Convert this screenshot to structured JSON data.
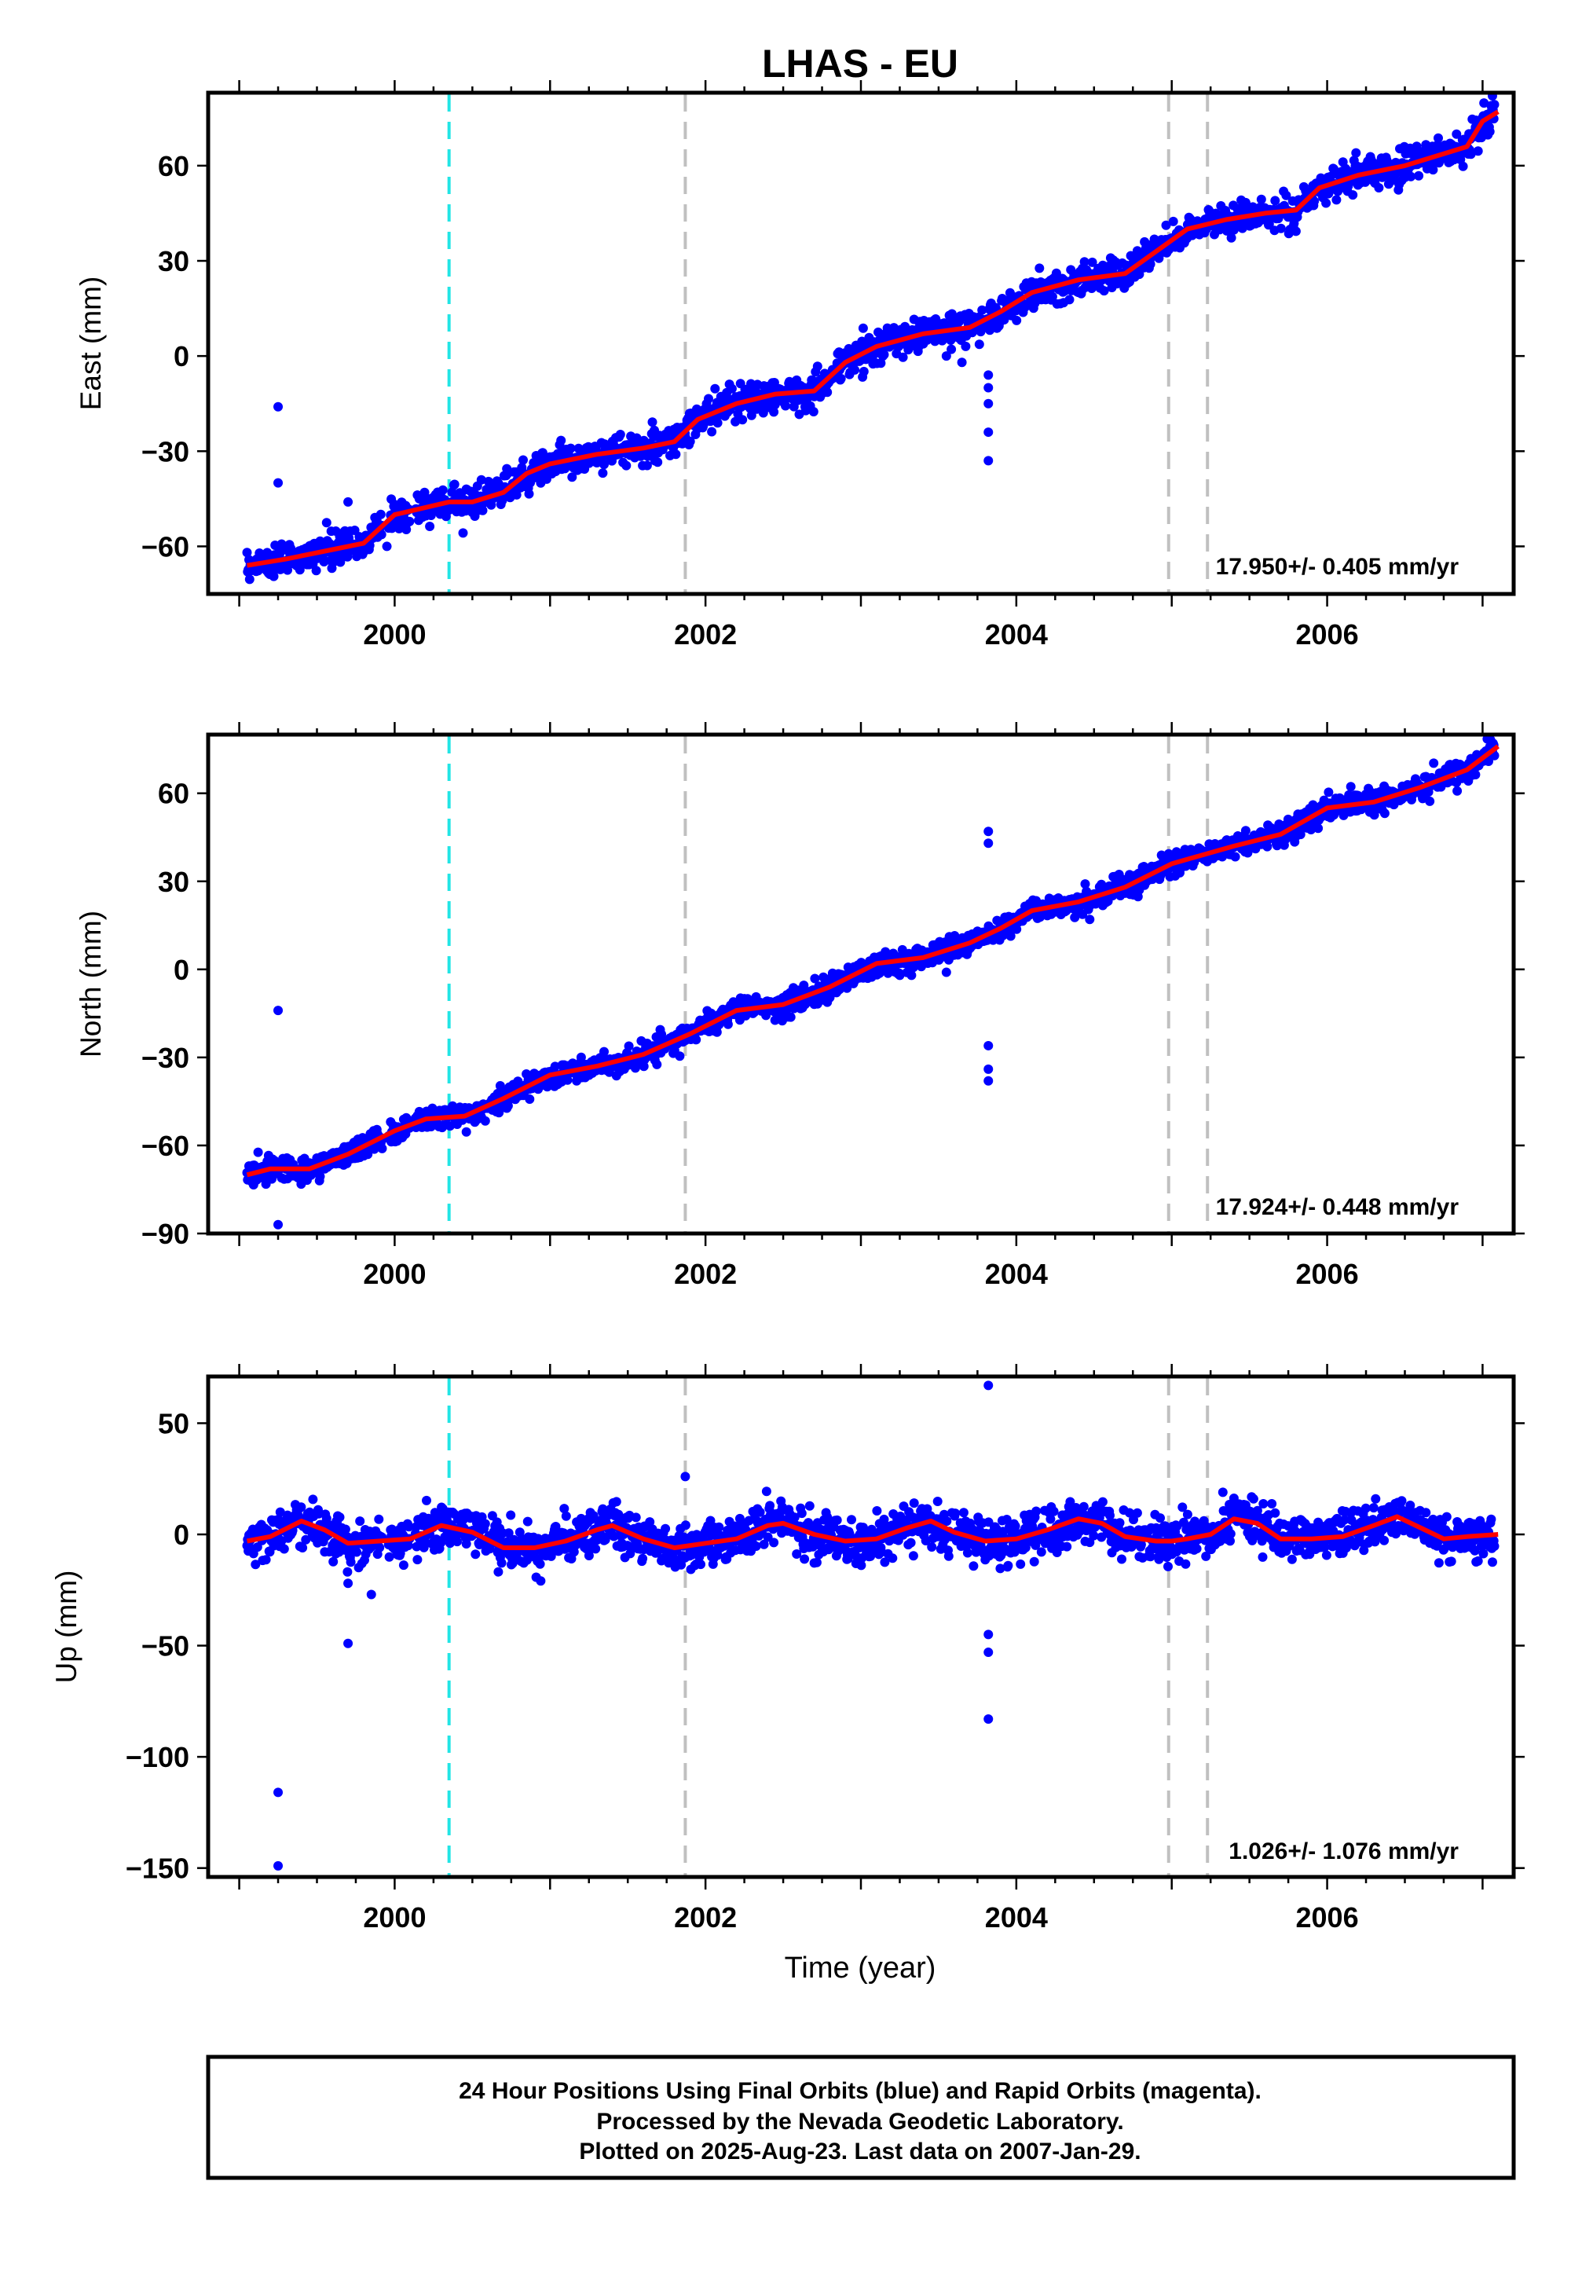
{
  "figure": {
    "title": "LHAS - EU",
    "xlabel": "Time (year)",
    "footer": [
      "24 Hour Positions Using Final Orbits (blue) and Rapid Orbits (magenta).",
      "Processed by the Nevada Geodetic Laboratory.",
      "Plotted on 2025-Aug-23. Last data on 2007-Jan-29."
    ]
  },
  "colors": {
    "points": "#0000ff",
    "model": "#ff0000",
    "equipment_change": "#22e5e5",
    "event_line": "#c0c0c0",
    "frame": "#000000"
  },
  "chart_data": [
    {
      "type": "scatter",
      "component": "east",
      "ylabel": "East (mm)",
      "xlim": [
        1998.8,
        2007.2
      ],
      "ylim": [
        -75,
        83
      ],
      "x_ticks": [
        2000,
        2002,
        2004,
        2006
      ],
      "y_ticks": [
        -60,
        -30,
        0,
        30,
        60
      ],
      "rate_text": "17.950+/- 0.405 mm/yr",
      "rate_mm_per_yr": 17.95,
      "rate_sigma": 0.405,
      "model_line": [
        [
          1999.05,
          -66
        ],
        [
          1999.3,
          -64
        ],
        [
          1999.6,
          -61
        ],
        [
          1999.8,
          -59
        ],
        [
          2000.0,
          -50
        ],
        [
          2000.35,
          -46
        ],
        [
          2000.5,
          -46
        ],
        [
          2000.7,
          -43
        ],
        [
          2000.85,
          -37
        ],
        [
          2001.0,
          -34
        ],
        [
          2001.3,
          -31
        ],
        [
          2001.6,
          -29
        ],
        [
          2001.8,
          -27
        ],
        [
          2001.95,
          -20
        ],
        [
          2002.2,
          -15
        ],
        [
          2002.45,
          -12
        ],
        [
          2002.7,
          -11
        ],
        [
          2002.9,
          -2
        ],
        [
          2003.1,
          3
        ],
        [
          2003.4,
          7
        ],
        [
          2003.7,
          9
        ],
        [
          2003.9,
          14
        ],
        [
          2004.1,
          20
        ],
        [
          2004.4,
          24
        ],
        [
          2004.7,
          26
        ],
        [
          2004.9,
          33
        ],
        [
          2005.1,
          40
        ],
        [
          2005.35,
          43
        ],
        [
          2005.6,
          45
        ],
        [
          2005.8,
          46
        ],
        [
          2005.95,
          53
        ],
        [
          2006.2,
          57
        ],
        [
          2006.5,
          60
        ],
        [
          2006.7,
          63
        ],
        [
          2006.9,
          66
        ],
        [
          2007.0,
          74
        ],
        [
          2007.1,
          77
        ]
      ],
      "outliers": [
        [
          1999.25,
          -16
        ],
        [
          1999.25,
          -40
        ],
        [
          2003.55,
          0
        ],
        [
          2003.65,
          -2
        ],
        [
          2003.82,
          -6
        ],
        [
          2003.82,
          -10
        ],
        [
          2003.82,
          -15
        ],
        [
          2003.82,
          -24
        ],
        [
          2003.82,
          -33
        ],
        [
          1999.7,
          -46
        ],
        [
          1999.95,
          -60
        ]
      ],
      "scatter_sigma": 2.5,
      "vlines": [
        {
          "x": 2000.35,
          "kind": "equipment_change"
        },
        {
          "x": 2001.87,
          "kind": "event_line"
        },
        {
          "x": 2004.98,
          "kind": "event_line"
        },
        {
          "x": 2005.23,
          "kind": "event_line"
        }
      ]
    },
    {
      "type": "scatter",
      "component": "north",
      "ylabel": "North (mm)",
      "xlim": [
        1998.8,
        2007.2
      ],
      "ylim": [
        -90,
        80
      ],
      "x_ticks": [
        2000,
        2002,
        2004,
        2006
      ],
      "y_ticks": [
        -90,
        -60,
        -30,
        0,
        30,
        60
      ],
      "rate_text": "17.924+/- 0.448 mm/yr",
      "rate_mm_per_yr": 17.924,
      "rate_sigma": 0.448,
      "model_line": [
        [
          1999.05,
          -70
        ],
        [
          1999.2,
          -68
        ],
        [
          1999.45,
          -68
        ],
        [
          1999.7,
          -63
        ],
        [
          2000.0,
          -55
        ],
        [
          2000.2,
          -51
        ],
        [
          2000.45,
          -50
        ],
        [
          2000.7,
          -44
        ],
        [
          2001.0,
          -36
        ],
        [
          2001.3,
          -33
        ],
        [
          2001.6,
          -29
        ],
        [
          2001.9,
          -22
        ],
        [
          2002.2,
          -14
        ],
        [
          2002.5,
          -12
        ],
        [
          2002.8,
          -6
        ],
        [
          2003.1,
          2
        ],
        [
          2003.4,
          4
        ],
        [
          2003.7,
          9
        ],
        [
          2003.9,
          14
        ],
        [
          2004.1,
          20
        ],
        [
          2004.4,
          23
        ],
        [
          2004.7,
          28
        ],
        [
          2005.0,
          36
        ],
        [
          2005.2,
          39
        ],
        [
          2005.4,
          42
        ],
        [
          2005.7,
          46
        ],
        [
          2006.0,
          55
        ],
        [
          2006.3,
          57
        ],
        [
          2006.6,
          62
        ],
        [
          2006.9,
          68
        ],
        [
          2007.1,
          76
        ]
      ],
      "outliers": [
        [
          1999.25,
          -14
        ],
        [
          1999.25,
          -87
        ],
        [
          2003.82,
          47
        ],
        [
          2003.82,
          43
        ],
        [
          2003.82,
          -26
        ],
        [
          2003.82,
          -34
        ],
        [
          2003.82,
          -38
        ],
        [
          2003.55,
          -1
        ]
      ],
      "scatter_sigma": 2.0,
      "vlines": [
        {
          "x": 2000.35,
          "kind": "equipment_change"
        },
        {
          "x": 2001.87,
          "kind": "event_line"
        },
        {
          "x": 2004.98,
          "kind": "event_line"
        },
        {
          "x": 2005.23,
          "kind": "event_line"
        }
      ]
    },
    {
      "type": "scatter",
      "component": "up",
      "ylabel": "Up (mm)",
      "xlim": [
        1998.8,
        2007.2
      ],
      "ylim": [
        -154,
        71
      ],
      "x_ticks": [
        2000,
        2002,
        2004,
        2006
      ],
      "y_ticks": [
        -150,
        -100,
        -50,
        0,
        50
      ],
      "rate_text": "1.026+/- 1.076 mm/yr",
      "rate_mm_per_yr": 1.026,
      "rate_sigma": 1.076,
      "model_line": [
        [
          1999.05,
          -3
        ],
        [
          1999.2,
          -1
        ],
        [
          1999.4,
          6
        ],
        [
          1999.55,
          2
        ],
        [
          1999.7,
          -4
        ],
        [
          1999.9,
          -3
        ],
        [
          2000.1,
          -2
        ],
        [
          2000.3,
          4
        ],
        [
          2000.5,
          1
        ],
        [
          2000.7,
          -6
        ],
        [
          2000.9,
          -6
        ],
        [
          2001.1,
          -3
        ],
        [
          2001.3,
          2
        ],
        [
          2001.4,
          4
        ],
        [
          2001.6,
          -2
        ],
        [
          2001.8,
          -6
        ],
        [
          2002.0,
          -4
        ],
        [
          2002.2,
          -2
        ],
        [
          2002.4,
          4
        ],
        [
          2002.5,
          5
        ],
        [
          2002.7,
          0
        ],
        [
          2002.9,
          -3
        ],
        [
          2003.1,
          -2
        ],
        [
          2003.3,
          3
        ],
        [
          2003.45,
          6
        ],
        [
          2003.6,
          1
        ],
        [
          2003.8,
          -3
        ],
        [
          2004.0,
          -2
        ],
        [
          2004.2,
          2
        ],
        [
          2004.4,
          7
        ],
        [
          2004.55,
          5
        ],
        [
          2004.7,
          -1
        ],
        [
          2004.9,
          -3
        ],
        [
          2005.0,
          -3
        ],
        [
          2005.1,
          -2
        ],
        [
          2005.25,
          0
        ],
        [
          2005.4,
          7
        ],
        [
          2005.55,
          5
        ],
        [
          2005.7,
          -2
        ],
        [
          2005.9,
          -2
        ],
        [
          2006.1,
          -1
        ],
        [
          2006.3,
          4
        ],
        [
          2006.45,
          8
        ],
        [
          2006.6,
          3
        ],
        [
          2006.75,
          -2
        ],
        [
          2006.9,
          -1
        ],
        [
          2007.1,
          0
        ]
      ],
      "outliers": [
        [
          1999.25,
          -116
        ],
        [
          1999.25,
          -149
        ],
        [
          1999.7,
          -49
        ],
        [
          1999.7,
          -22
        ],
        [
          2001.87,
          26
        ],
        [
          2003.82,
          67
        ],
        [
          2003.82,
          -45
        ],
        [
          2003.82,
          -53
        ],
        [
          2003.82,
          -83
        ],
        [
          1999.85,
          -27
        ]
      ],
      "scatter_sigma": 5.0,
      "vlines": [
        {
          "x": 2000.35,
          "kind": "equipment_change"
        },
        {
          "x": 2001.87,
          "kind": "event_line"
        },
        {
          "x": 2004.98,
          "kind": "event_line"
        },
        {
          "x": 2005.23,
          "kind": "event_line"
        }
      ]
    }
  ]
}
